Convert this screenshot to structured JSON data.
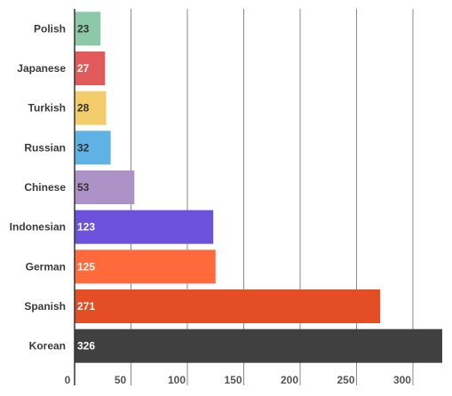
{
  "chart_data": {
    "type": "bar",
    "orientation": "horizontal",
    "title": "",
    "xlabel": "",
    "ylabel": "",
    "categories": [
      "Polish",
      "Japanese",
      "Turkish",
      "Russian",
      "Chinese",
      "Indonesian",
      "German",
      "Spanish",
      "Korean"
    ],
    "values": [
      23,
      27,
      28,
      32,
      53,
      123,
      125,
      271,
      326
    ],
    "colors": [
      "#8cc9a8",
      "#e25b5b",
      "#f3cc6b",
      "#5eb3e4",
      "#ad92c8",
      "#6b51db",
      "#ff6a3d",
      "#e44e24",
      "#404040"
    ],
    "label_colors": [
      "#333333",
      "#ffffff",
      "#333333",
      "#333333",
      "#333333",
      "#ffffff",
      "#ffffff",
      "#ffffff",
      "#ffffff"
    ],
    "xlim": [
      0,
      326
    ],
    "xticks": [
      0,
      50,
      100,
      150,
      200,
      250,
      300
    ],
    "tick_labels": [
      "0",
      "50",
      "100",
      "150",
      "200",
      "250",
      "300"
    ],
    "grid": true,
    "legend": "none"
  }
}
